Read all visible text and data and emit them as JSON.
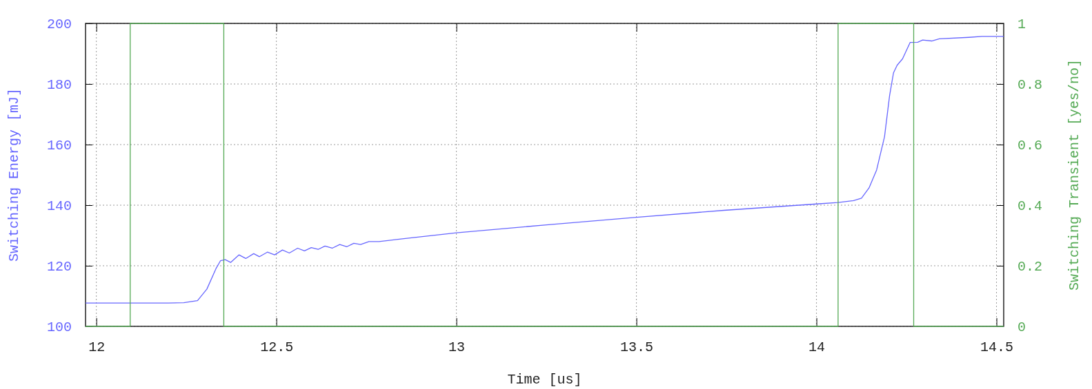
{
  "chart_data": {
    "type": "line",
    "xlabel": "Time [us]",
    "ylabel": "Switching Energy [mJ]",
    "y2label": "Switching Transient [yes/no]",
    "xlim": [
      11.97,
      14.52
    ],
    "xticks": [
      12,
      12.5,
      13,
      13.5,
      14,
      14.5
    ],
    "ylim": [
      100,
      200
    ],
    "yticks": [
      100,
      120,
      140,
      160,
      180,
      200
    ],
    "y2lim": [
      0,
      1
    ],
    "y2ticks": [
      0,
      0.2,
      0.4,
      0.6,
      0.8,
      1
    ],
    "grid": true,
    "line_style": "solid",
    "series": [
      {
        "color": "#6666ff",
        "x": [
          11.97,
          12.1,
          12.2,
          12.243,
          12.281,
          12.307,
          12.332,
          12.345,
          12.358,
          12.373,
          12.396,
          12.415,
          12.437,
          12.453,
          12.475,
          12.495,
          12.517,
          12.536,
          12.559,
          12.578,
          12.597,
          12.616,
          12.635,
          12.655,
          12.676,
          12.696,
          12.715,
          12.734,
          12.757,
          12.785,
          12.85,
          13,
          13.25,
          13.5,
          13.743,
          14,
          14.06,
          14.103,
          14.125,
          14.146,
          14.167,
          14.189,
          14.203,
          14.214,
          14.224,
          14.239,
          14.26,
          14.281,
          14.295,
          14.32,
          14.341,
          14.423,
          14.46,
          14.52
        ],
        "values": [
          107.7,
          107.7,
          107.7,
          107.8,
          108.5,
          112.3,
          119,
          121.7,
          122,
          121.1,
          123.6,
          122.4,
          124,
          123,
          124.5,
          123.6,
          125.2,
          124.2,
          125.8,
          124.9,
          126,
          125.4,
          126.5,
          125.8,
          127,
          126.3,
          127.4,
          127,
          128,
          128,
          128.9,
          130.9,
          133.5,
          136,
          138.3,
          140.4,
          140.9,
          141.5,
          142.3,
          145.7,
          151.6,
          162.6,
          176.1,
          183.7,
          186.2,
          188.3,
          193.7,
          193.8,
          194.5,
          194.2,
          194.9,
          195.4,
          195.7,
          195.7
        ]
      },
      {
        "type": "step",
        "axis": "y2",
        "color": "#55aa55",
        "x": [
          11.97,
          12.094,
          12.354,
          14.06,
          14.27,
          14.52
        ],
        "values": [
          0,
          1,
          0,
          1,
          0,
          0
        ]
      }
    ]
  }
}
